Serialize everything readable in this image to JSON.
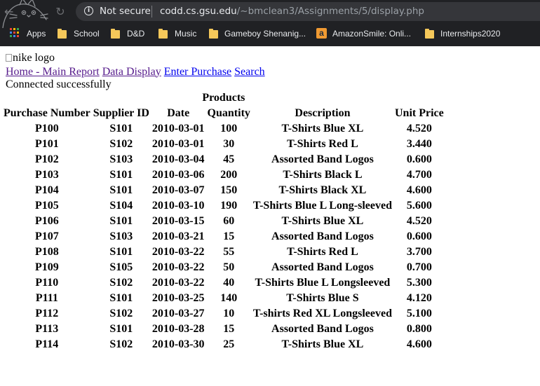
{
  "browser": {
    "security_label": "Not secure",
    "url_host": "codd.cs.gsu.edu",
    "url_path": "/~bmclean3/Assignments/5/display.php",
    "bookmarks": [
      {
        "label": "Apps",
        "icon": "apps-icon"
      },
      {
        "label": "School",
        "icon": "folder-icon"
      },
      {
        "label": "D&D",
        "icon": "folder-icon"
      },
      {
        "label": "Music",
        "icon": "folder-icon"
      },
      {
        "label": "Gameboy Shenanig...",
        "icon": "folder-icon"
      },
      {
        "label": "AmazonSmile: Onli...",
        "icon": "amazon-icon"
      },
      {
        "label": "Internships2020",
        "icon": "folder-icon"
      }
    ]
  },
  "page": {
    "logo_alt": "nike logo",
    "nav": {
      "home": "Home - Main Report",
      "data_display": "Data Display",
      "enter_purchase": "Enter Purchase",
      "search": "Search"
    },
    "status": "Connected successfully",
    "table": {
      "caption": "Products",
      "columns": [
        "Purchase Number",
        "Supplier ID",
        "Date",
        "Quantity",
        "Description",
        "Unit Price"
      ],
      "rows": [
        [
          "P100",
          "S101",
          "2010-03-01",
          "100",
          "T-Shirts Blue XL",
          "4.520"
        ],
        [
          "P101",
          "S102",
          "2010-03-01",
          "30",
          "T-Shirts Red L",
          "3.440"
        ],
        [
          "P102",
          "S103",
          "2010-03-04",
          "45",
          "Assorted Band Logos",
          "0.600"
        ],
        [
          "P103",
          "S101",
          "2010-03-06",
          "200",
          "T-Shirts Black L",
          "4.700"
        ],
        [
          "P104",
          "S101",
          "2010-03-07",
          "150",
          "T-Shirts Black XL",
          "4.600"
        ],
        [
          "P105",
          "S104",
          "2010-03-10",
          "190",
          "T-Shirts Blue L Long-sleeved",
          "5.600"
        ],
        [
          "P106",
          "S101",
          "2010-03-15",
          "60",
          "T-Shirts Blue XL",
          "4.520"
        ],
        [
          "P107",
          "S103",
          "2010-03-21",
          "15",
          "Assorted Band Logos",
          "0.600"
        ],
        [
          "P108",
          "S101",
          "2010-03-22",
          "55",
          "T-Shirts Red L",
          "3.700"
        ],
        [
          "P109",
          "S105",
          "2010-03-22",
          "50",
          "Assorted Band Logos",
          "0.700"
        ],
        [
          "P110",
          "S102",
          "2010-03-22",
          "40",
          "T-Shirts Blue L Longsleeved",
          "5.300"
        ],
        [
          "P111",
          "S101",
          "2010-03-25",
          "140",
          "T-Shirts Blue S",
          "4.120"
        ],
        [
          "P112",
          "S102",
          "2010-03-27",
          "10",
          "T-shirts Red XL Longsleeved",
          "5.100"
        ],
        [
          "P113",
          "S101",
          "2010-03-28",
          "15",
          "Assorted Band Logos",
          "0.800"
        ],
        [
          "P114",
          "S102",
          "2010-03-30",
          "25",
          "T-Shirts Blue XL",
          "4.600"
        ]
      ]
    }
  }
}
